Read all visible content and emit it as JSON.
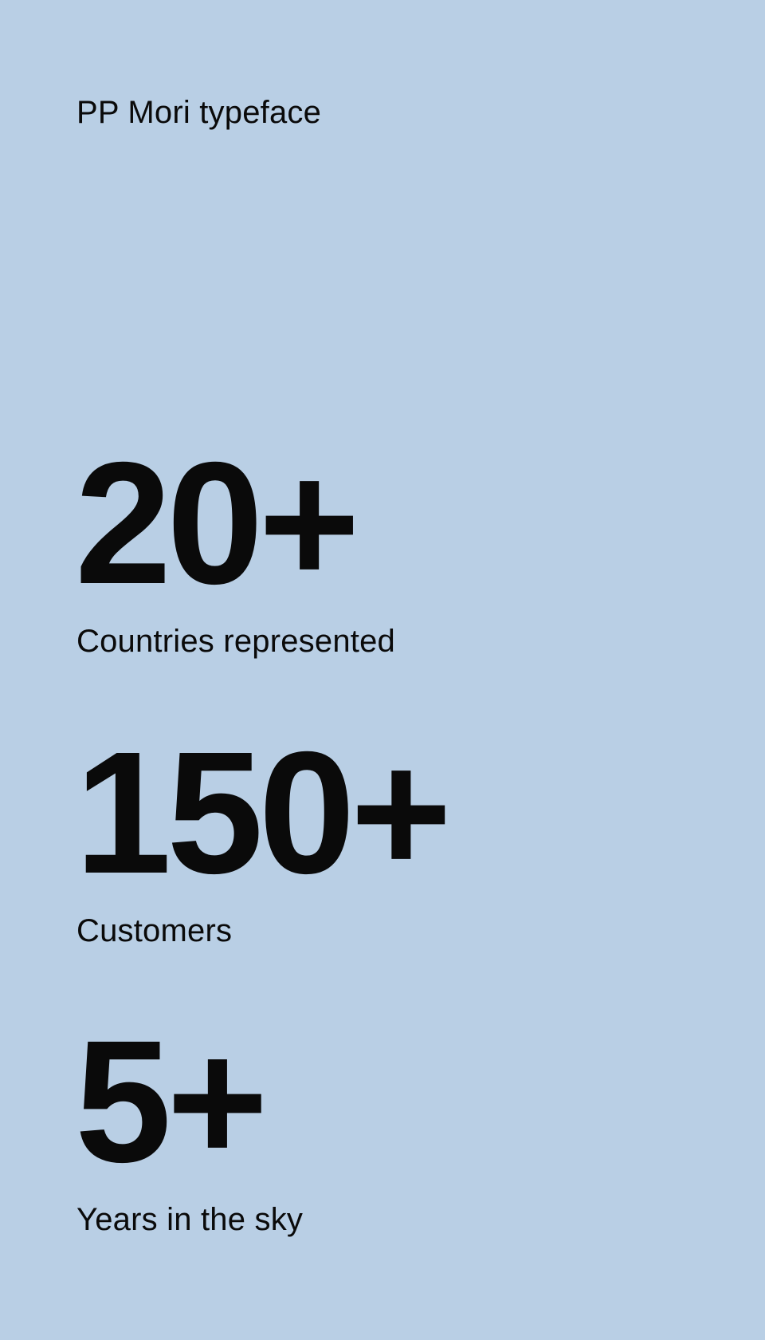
{
  "header": {
    "caption": "PP Mori typeface"
  },
  "stats": [
    {
      "value": "20+",
      "label": "Countries represented"
    },
    {
      "value": "150+",
      "label": "Customers"
    },
    {
      "value": "5+",
      "label": "Years in the sky"
    }
  ],
  "colors": {
    "background": "#b9cfe5",
    "text": "#0a0a0a"
  }
}
